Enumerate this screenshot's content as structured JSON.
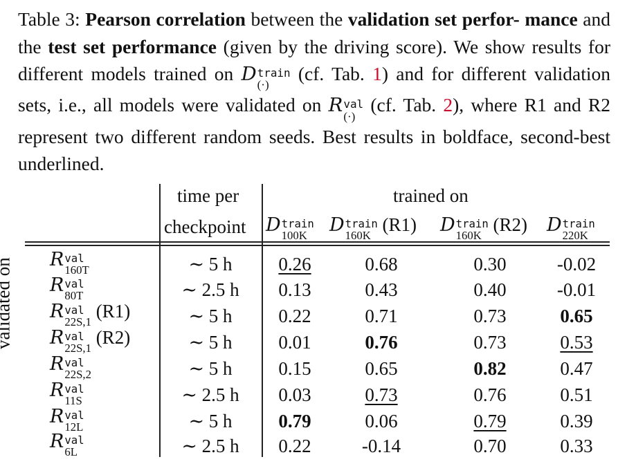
{
  "caption": {
    "label": "Table 3:",
    "b1": "Pearson correlation",
    "t1": " between the ",
    "b2": "validation set perfor- mance",
    "t2": " and the ",
    "b3": "test set performance",
    "t3": " (given by the driving score). We show results for different models trained on ",
    "sym_d": "D",
    "sup_train": "train",
    "sub_dot": "(·)",
    "t4": " (cf. Tab. ",
    "ref1": "1",
    "t5": ") and for different validation sets, i.e., all models were validated on ",
    "sym_r": "R",
    "sup_val": "val",
    "t6": " (cf. Tab. ",
    "ref2": "2",
    "t7": "), where R1 and R2 represent two different random seeds. Best results in boldface, second-best underlined."
  },
  "table": {
    "row_group_label": "validated on",
    "col_time_line1": "time per",
    "col_time_line2": "checkpoint",
    "col_group_label": "trained on",
    "columns": [
      {
        "sym": "D",
        "sup": "train",
        "sub": "100K",
        "suffix": ""
      },
      {
        "sym": "D",
        "sup": "train",
        "sub": "160K",
        "suffix": " (R1)"
      },
      {
        "sym": "D",
        "sup": "train",
        "sub": "160K",
        "suffix": " (R2)"
      },
      {
        "sym": "D",
        "sup": "train",
        "sub": "220K",
        "suffix": ""
      }
    ],
    "rows": [
      {
        "sym": "R",
        "sup": "val",
        "sub": "160T",
        "suffix": "",
        "time": "∼ 5 h",
        "values": [
          "0.26",
          "0.68",
          "0.30",
          "-0.02"
        ],
        "styles": [
          "ul",
          "",
          "",
          ""
        ]
      },
      {
        "sym": "R",
        "sup": "val",
        "sub": "80T",
        "suffix": "",
        "time": "∼ 2.5 h",
        "values": [
          "0.13",
          "0.43",
          "0.40",
          "-0.01"
        ],
        "styles": [
          "",
          "",
          "",
          ""
        ]
      },
      {
        "sym": "R",
        "sup": "val",
        "sub": "22S,1",
        "suffix": " (R1)",
        "time": "∼ 5 h",
        "values": [
          "0.22",
          "0.71",
          "0.73",
          "0.65"
        ],
        "styles": [
          "",
          "",
          "",
          "bold"
        ]
      },
      {
        "sym": "R",
        "sup": "val",
        "sub": "22S,1",
        "suffix": " (R2)",
        "time": "∼ 5 h",
        "values": [
          "0.01",
          "0.76",
          "0.73",
          "0.53"
        ],
        "styles": [
          "",
          "bold",
          "",
          "ul"
        ]
      },
      {
        "sym": "R",
        "sup": "val",
        "sub": "22S,2",
        "suffix": "",
        "time": "∼ 5 h",
        "values": [
          "0.15",
          "0.65",
          "0.82",
          "0.47"
        ],
        "styles": [
          "",
          "",
          "bold",
          ""
        ]
      },
      {
        "sym": "R",
        "sup": "val",
        "sub": "11S",
        "suffix": "",
        "time": "∼ 2.5 h",
        "values": [
          "0.03",
          "0.73",
          "0.76",
          "0.51"
        ],
        "styles": [
          "",
          "ul",
          "",
          ""
        ]
      },
      {
        "sym": "R",
        "sup": "val",
        "sub": "12L",
        "suffix": "",
        "time": "∼ 5 h",
        "values": [
          "0.79",
          "0.06",
          "0.79",
          "0.39"
        ],
        "styles": [
          "bold",
          "",
          "ul",
          ""
        ]
      },
      {
        "sym": "R",
        "sup": "val",
        "sub": "6L",
        "suffix": "",
        "time": "∼ 2.5 h",
        "values": [
          "0.22",
          "-0.14",
          "0.70",
          "0.33"
        ],
        "styles": [
          "",
          "",
          "",
          ""
        ]
      }
    ]
  }
}
